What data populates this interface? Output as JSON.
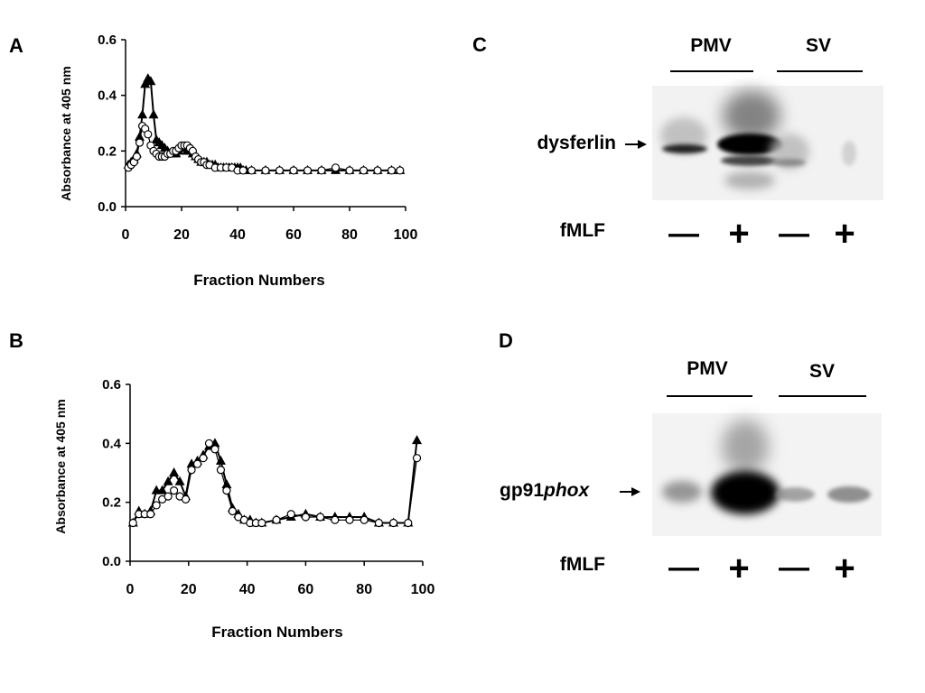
{
  "panels": {
    "A": "A",
    "B": "B",
    "C": "C",
    "D": "D"
  },
  "chart_data": [
    {
      "panel": "A",
      "type": "line",
      "xlabel": "Fraction Numbers",
      "ylabel": "Absorbance at 405 nm",
      "xlim": [
        0,
        100
      ],
      "ylim": [
        0,
        0.6
      ],
      "xticks": [
        "0",
        "20",
        "40",
        "60",
        "80",
        "100"
      ],
      "yticks": [
        "0.0",
        "0.2",
        "0.4",
        "0.6"
      ],
      "series": [
        {
          "marker": "triangle",
          "x": [
            1,
            2,
            3,
            4,
            5,
            6,
            7,
            8,
            9,
            10,
            11,
            12,
            13,
            14,
            15,
            16,
            17,
            18,
            19,
            20,
            21,
            22,
            23,
            24,
            25,
            26,
            27,
            28,
            29,
            30,
            31,
            32,
            33,
            34,
            35,
            36,
            37,
            38,
            39,
            40,
            41,
            42,
            43,
            45,
            50,
            55,
            60,
            65,
            70,
            75,
            80,
            85,
            90,
            95,
            98
          ],
          "y": [
            0.15,
            0.16,
            0.17,
            0.19,
            0.25,
            0.33,
            0.44,
            0.46,
            0.45,
            0.33,
            0.24,
            0.23,
            0.22,
            0.21,
            0.2,
            0.19,
            0.19,
            0.19,
            0.2,
            0.21,
            0.21,
            0.2,
            0.2,
            0.19,
            0.18,
            0.17,
            0.16,
            0.16,
            0.16,
            0.15,
            0.15,
            0.15,
            0.14,
            0.14,
            0.14,
            0.14,
            0.14,
            0.14,
            0.14,
            0.14,
            0.14,
            0.13,
            0.13,
            0.13,
            0.13,
            0.13,
            0.13,
            0.13,
            0.13,
            0.13,
            0.13,
            0.13,
            0.13,
            0.13,
            0.13
          ]
        },
        {
          "marker": "circle",
          "x": [
            1,
            2,
            3,
            4,
            5,
            6,
            7,
            8,
            9,
            10,
            11,
            12,
            13,
            14,
            15,
            16,
            17,
            18,
            19,
            20,
            21,
            22,
            23,
            24,
            25,
            26,
            27,
            28,
            29,
            30,
            32,
            34,
            36,
            38,
            40,
            42,
            45,
            50,
            55,
            60,
            65,
            70,
            75,
            80,
            85,
            90,
            95,
            98
          ],
          "y": [
            0.14,
            0.15,
            0.16,
            0.18,
            0.23,
            0.29,
            0.28,
            0.26,
            0.22,
            0.2,
            0.19,
            0.18,
            0.18,
            0.18,
            0.19,
            0.19,
            0.2,
            0.2,
            0.21,
            0.22,
            0.22,
            0.22,
            0.21,
            0.2,
            0.18,
            0.17,
            0.16,
            0.16,
            0.15,
            0.15,
            0.14,
            0.14,
            0.14,
            0.14,
            0.13,
            0.13,
            0.13,
            0.13,
            0.13,
            0.13,
            0.13,
            0.13,
            0.14,
            0.13,
            0.13,
            0.13,
            0.13,
            0.13
          ]
        }
      ]
    },
    {
      "panel": "B",
      "type": "line",
      "xlabel": "Fraction Numbers",
      "ylabel": "Absorbance at 405 nm",
      "xlim": [
        0,
        100
      ],
      "ylim": [
        0,
        0.6
      ],
      "xticks": [
        "0",
        "20",
        "40",
        "60",
        "80",
        "100"
      ],
      "yticks": [
        "0.0",
        "0.2",
        "0.4",
        "0.6"
      ],
      "series": [
        {
          "marker": "triangle",
          "x": [
            1,
            3,
            5,
            7,
            9,
            11,
            13,
            15,
            17,
            19,
            21,
            23,
            25,
            27,
            29,
            31,
            33,
            35,
            37,
            39,
            41,
            43,
            45,
            50,
            55,
            60,
            65,
            70,
            75,
            80,
            85,
            90,
            95,
            98
          ],
          "y": [
            0.13,
            0.17,
            0.16,
            0.17,
            0.24,
            0.24,
            0.27,
            0.3,
            0.27,
            0.22,
            0.33,
            0.34,
            0.36,
            0.39,
            0.4,
            0.34,
            0.26,
            0.18,
            0.16,
            0.14,
            0.14,
            0.13,
            0.13,
            0.14,
            0.15,
            0.16,
            0.15,
            0.15,
            0.15,
            0.15,
            0.13,
            0.13,
            0.13,
            0.41
          ]
        },
        {
          "marker": "circle",
          "x": [
            1,
            3,
            5,
            7,
            9,
            11,
            13,
            15,
            17,
            19,
            21,
            23,
            25,
            27,
            29,
            31,
            33,
            35,
            37,
            39,
            41,
            43,
            45,
            50,
            55,
            60,
            65,
            70,
            75,
            80,
            85,
            90,
            95,
            98
          ],
          "y": [
            0.13,
            0.16,
            0.16,
            0.16,
            0.19,
            0.21,
            0.22,
            0.24,
            0.22,
            0.21,
            0.31,
            0.33,
            0.35,
            0.4,
            0.38,
            0.31,
            0.24,
            0.17,
            0.15,
            0.14,
            0.13,
            0.13,
            0.13,
            0.14,
            0.16,
            0.15,
            0.15,
            0.14,
            0.14,
            0.14,
            0.13,
            0.13,
            0.13,
            0.35
          ]
        }
      ]
    }
  ],
  "blot_c": {
    "group1": "PMV",
    "group2": "SV",
    "protein": "dysferlin",
    "treatment": "fMLF",
    "lanes": [
      "—",
      "+",
      "—",
      "+"
    ]
  },
  "blot_d": {
    "group1": "PMV",
    "group2": "SV",
    "protein_prefix": "gp91",
    "protein_italic": "phox",
    "treatment": "fMLF",
    "lanes": [
      "—",
      "+",
      "—",
      "+"
    ]
  }
}
